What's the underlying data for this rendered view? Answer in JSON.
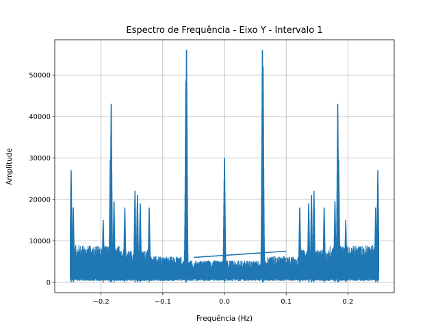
{
  "chart_data": {
    "type": "line",
    "title": "Espectro de Frequência - Eixo Y - Intervalo 1",
    "xlabel": "Frequência (Hz)",
    "ylabel": "Amplitude",
    "xlim": [
      -0.275,
      0.275
    ],
    "ylim": [
      -2500,
      58500
    ],
    "xticks": [
      -0.2,
      -0.1,
      0.0,
      0.1,
      0.2
    ],
    "xtick_labels": [
      "−0.2",
      "−0.1",
      "0.0",
      "0.1",
      "0.2"
    ],
    "yticks": [
      0,
      10000,
      20000,
      30000,
      40000,
      50000
    ],
    "ytick_labels": [
      "0",
      "10000",
      "20000",
      "30000",
      "40000",
      "50000"
    ],
    "grid": true,
    "series_color": "#1f77b4",
    "freq_range": [
      -0.25,
      0.25
    ],
    "peaks": [
      {
        "x": -0.2485,
        "y": 27000
      },
      {
        "x": -0.245,
        "y": 18000
      },
      {
        "x": -0.1835,
        "y": 43000
      },
      {
        "x": -0.185,
        "y": 29500
      },
      {
        "x": -0.179,
        "y": 19500
      },
      {
        "x": -0.1615,
        "y": 18000
      },
      {
        "x": -0.1965,
        "y": 15000
      },
      {
        "x": -0.145,
        "y": 22000
      },
      {
        "x": -0.141,
        "y": 21000
      },
      {
        "x": -0.1365,
        "y": 19000
      },
      {
        "x": -0.122,
        "y": 18000
      },
      {
        "x": -0.0615,
        "y": 56000
      },
      {
        "x": -0.0625,
        "y": 48500
      },
      {
        "x": 0.0,
        "y": 30000
      },
      {
        "x": 0.0615,
        "y": 56000
      },
      {
        "x": 0.0625,
        "y": 52000
      },
      {
        "x": 0.122,
        "y": 18000
      },
      {
        "x": 0.1365,
        "y": 19000
      },
      {
        "x": 0.141,
        "y": 21000
      },
      {
        "x": 0.145,
        "y": 22000
      },
      {
        "x": 0.1615,
        "y": 18000
      },
      {
        "x": 0.179,
        "y": 19500
      },
      {
        "x": 0.185,
        "y": 29500
      },
      {
        "x": 0.1835,
        "y": 43000
      },
      {
        "x": 0.1965,
        "y": 15000
      },
      {
        "x": 0.245,
        "y": 18000
      },
      {
        "x": 0.2485,
        "y": 27000
      }
    ],
    "connecting_segment": {
      "x": [
        -0.05,
        0.1
      ],
      "y": [
        6000,
        7500
      ]
    }
  }
}
